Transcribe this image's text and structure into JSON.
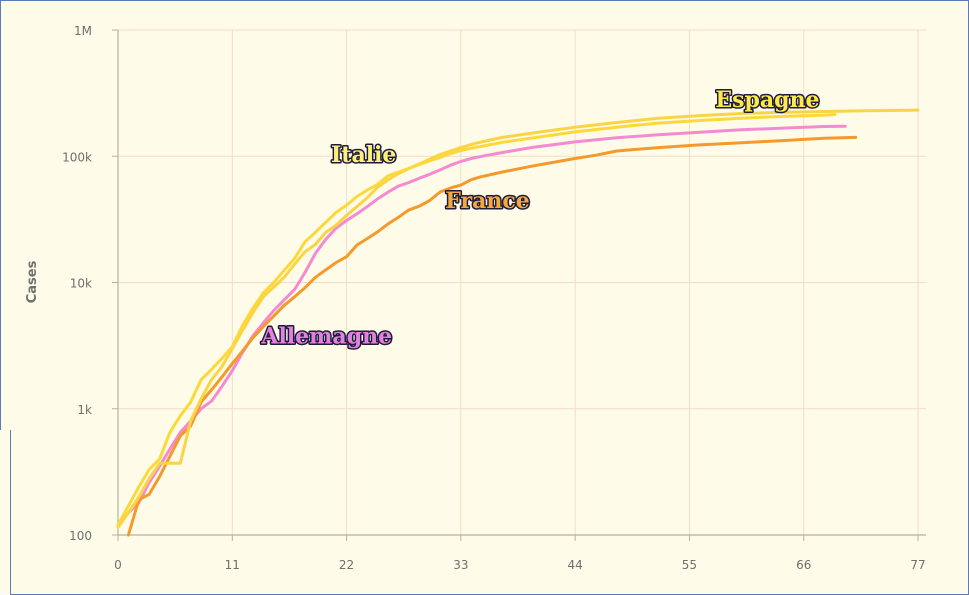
{
  "chart_data": {
    "type": "line",
    "ylabel": "Cases",
    "xlabel": "",
    "yscale": "log",
    "ylim": [
      100,
      1000000
    ],
    "xlim": [
      0,
      77
    ],
    "x_ticks": [
      "0",
      "11",
      "22",
      "33",
      "44",
      "55",
      "66",
      "77"
    ],
    "y_ticks": [
      "100",
      "1k",
      "10k",
      "100k",
      "1M"
    ],
    "grid": true,
    "series": [
      {
        "name": "Italie",
        "color": "#fcd83a",
        "label_color": "#fff07a",
        "points": [
          [
            0,
            120
          ],
          [
            1,
            170
          ],
          [
            2,
            240
          ],
          [
            3,
            330
          ],
          [
            4,
            400
          ],
          [
            5,
            650
          ],
          [
            6,
            880
          ],
          [
            7,
            1130
          ],
          [
            8,
            1700
          ],
          [
            9,
            2050
          ],
          [
            10,
            2500
          ],
          [
            11,
            3100
          ],
          [
            12,
            4600
          ],
          [
            13,
            6300
          ],
          [
            14,
            8300
          ],
          [
            15,
            10000
          ],
          [
            16,
            12500
          ],
          [
            17,
            15500
          ],
          [
            18,
            21000
          ],
          [
            19,
            25000
          ],
          [
            20,
            30000
          ],
          [
            21,
            36000
          ],
          [
            22,
            41000
          ],
          [
            23,
            48000
          ],
          [
            24,
            54000
          ],
          [
            25,
            60000
          ],
          [
            26,
            70000
          ],
          [
            27,
            75000
          ],
          [
            28,
            80000
          ],
          [
            29,
            86000
          ],
          [
            30,
            92000
          ],
          [
            31,
            98000
          ],
          [
            32,
            105000
          ],
          [
            33,
            111000
          ],
          [
            34,
            116000
          ],
          [
            35,
            120000
          ],
          [
            37,
            129000
          ],
          [
            40,
            140000
          ],
          [
            44,
            156000
          ],
          [
            48,
            170000
          ],
          [
            52,
            183000
          ],
          [
            56,
            192000
          ],
          [
            60,
            200000
          ],
          [
            64,
            207000
          ],
          [
            68,
            212000
          ],
          [
            69,
            214000
          ]
        ]
      },
      {
        "name": "Espagne",
        "color": "#fbd446",
        "label_color": "#ffe94d",
        "points": [
          [
            0,
            115
          ],
          [
            1,
            150
          ],
          [
            2,
            200
          ],
          [
            3,
            280
          ],
          [
            4,
            370
          ],
          [
            5,
            370
          ],
          [
            6,
            370
          ],
          [
            7,
            800
          ],
          [
            8,
            1200
          ],
          [
            9,
            1700
          ],
          [
            10,
            2150
          ],
          [
            11,
            3000
          ],
          [
            12,
            4200
          ],
          [
            13,
            5800
          ],
          [
            14,
            7750
          ],
          [
            15,
            9200
          ],
          [
            16,
            11000
          ],
          [
            17,
            14000
          ],
          [
            18,
            17500
          ],
          [
            19,
            20000
          ],
          [
            20,
            25000
          ],
          [
            21,
            28500
          ],
          [
            22,
            34000
          ],
          [
            23,
            40000
          ],
          [
            24,
            47000
          ],
          [
            25,
            57000
          ],
          [
            26,
            65000
          ],
          [
            27,
            73000
          ],
          [
            28,
            80000
          ],
          [
            29,
            87000
          ],
          [
            30,
            95000
          ],
          [
            31,
            103000
          ],
          [
            32,
            110000
          ],
          [
            33,
            117000
          ],
          [
            34,
            124000
          ],
          [
            35,
            130000
          ],
          [
            37,
            141000
          ],
          [
            40,
            153000
          ],
          [
            44,
            170000
          ],
          [
            48,
            185000
          ],
          [
            52,
            200000
          ],
          [
            56,
            210000
          ],
          [
            60,
            218000
          ],
          [
            64,
            223000
          ],
          [
            68,
            226000
          ],
          [
            72,
            229000
          ],
          [
            77,
            232000
          ]
        ]
      },
      {
        "name": "Allemagne",
        "color": "#f58ad2",
        "label_color": "#e580e0",
        "points": [
          [
            0,
            120
          ],
          [
            1,
            150
          ],
          [
            2,
            180
          ],
          [
            3,
            260
          ],
          [
            4,
            350
          ],
          [
            5,
            480
          ],
          [
            6,
            650
          ],
          [
            7,
            800
          ],
          [
            8,
            1000
          ],
          [
            9,
            1150
          ],
          [
            10,
            1500
          ],
          [
            11,
            2000
          ],
          [
            12,
            2800
          ],
          [
            13,
            3800
          ],
          [
            14,
            4800
          ],
          [
            15,
            6000
          ],
          [
            16,
            7300
          ],
          [
            17,
            8800
          ],
          [
            18,
            12000
          ],
          [
            19,
            17000
          ],
          [
            20,
            22000
          ],
          [
            21,
            27000
          ],
          [
            22,
            31000
          ],
          [
            23,
            35000
          ],
          [
            24,
            40000
          ],
          [
            25,
            46000
          ],
          [
            26,
            52000
          ],
          [
            27,
            58000
          ],
          [
            28,
            62000
          ],
          [
            29,
            67000
          ],
          [
            30,
            72000
          ],
          [
            31,
            78000
          ],
          [
            32,
            85000
          ],
          [
            33,
            91000
          ],
          [
            34,
            96000
          ],
          [
            35,
            100000
          ],
          [
            37,
            107000
          ],
          [
            40,
            118000
          ],
          [
            44,
            130000
          ],
          [
            48,
            140000
          ],
          [
            52,
            148000
          ],
          [
            56,
            155000
          ],
          [
            60,
            162000
          ],
          [
            64,
            167000
          ],
          [
            68,
            172000
          ],
          [
            70,
            173000
          ]
        ]
      },
      {
        "name": "France",
        "color": "#f49a2a",
        "label_color": "#f4a83d",
        "points": [
          [
            1,
            100
          ],
          [
            2,
            190
          ],
          [
            3,
            210
          ],
          [
            4,
            290
          ],
          [
            5,
            420
          ],
          [
            6,
            610
          ],
          [
            7,
            730
          ],
          [
            8,
            1130
          ],
          [
            9,
            1410
          ],
          [
            10,
            1780
          ],
          [
            11,
            2280
          ],
          [
            12,
            2880
          ],
          [
            13,
            3660
          ],
          [
            14,
            4500
          ],
          [
            15,
            5420
          ],
          [
            16,
            6600
          ],
          [
            17,
            7700
          ],
          [
            18,
            9100
          ],
          [
            19,
            11000
          ],
          [
            20,
            12600
          ],
          [
            21,
            14400
          ],
          [
            22,
            16000
          ],
          [
            23,
            19800
          ],
          [
            24,
            22300
          ],
          [
            25,
            25200
          ],
          [
            26,
            29100
          ],
          [
            27,
            32900
          ],
          [
            28,
            37600
          ],
          [
            29,
            40200
          ],
          [
            30,
            44600
          ],
          [
            31,
            52100
          ],
          [
            32,
            56000
          ],
          [
            33,
            59100
          ],
          [
            34,
            65200
          ],
          [
            35,
            69000
          ],
          [
            37,
            75000
          ],
          [
            40,
            84000
          ],
          [
            44,
            96000
          ],
          [
            46,
            102000
          ],
          [
            48,
            110000
          ],
          [
            52,
            117000
          ],
          [
            56,
            123000
          ],
          [
            60,
            128000
          ],
          [
            64,
            133000
          ],
          [
            66,
            136000
          ],
          [
            68,
            139000
          ],
          [
            71,
            141000
          ]
        ]
      }
    ]
  }
}
